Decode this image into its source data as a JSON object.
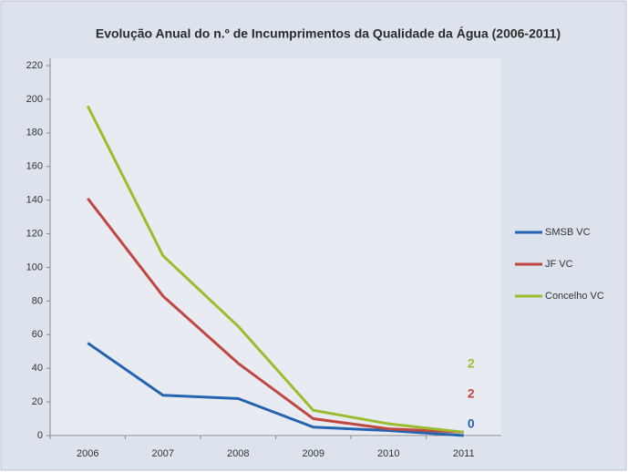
{
  "chart_data": {
    "type": "line",
    "title": "Evolução Anual do n.º de Incumprimentos da Qualidade da Água (2006-2011)",
    "categories": [
      "2006",
      "2007",
      "2008",
      "2009",
      "2010",
      "2011"
    ],
    "series": [
      {
        "name": "SMSB VC",
        "color": "#2463b0",
        "values": [
          55,
          24,
          22,
          5,
          3,
          0
        ]
      },
      {
        "name": "JF VC",
        "color": "#c0473f",
        "values": [
          141,
          83,
          43,
          10,
          4,
          2
        ]
      },
      {
        "name": "Concelho VC",
        "color": "#9bbd2d",
        "values": [
          196,
          107,
          65,
          15,
          7,
          2
        ]
      }
    ],
    "ylim": [
      0,
      220
    ],
    "yticks": [
      0,
      20,
      40,
      60,
      80,
      100,
      120,
      140,
      160,
      180,
      200,
      220
    ],
    "grid": false,
    "legend": "right"
  }
}
